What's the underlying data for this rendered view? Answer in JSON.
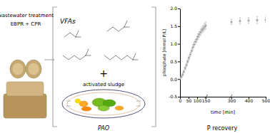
{
  "chart_data": {
    "type": "scatter",
    "marker": "o",
    "color": "#aaaaaa",
    "x": [
      0,
      8,
      15,
      22,
      30,
      38,
      45,
      52,
      60,
      68,
      75,
      82,
      90,
      98,
      105,
      112,
      120,
      128,
      135,
      143,
      150,
      300,
      350,
      400,
      450,
      500
    ],
    "values": [
      0.02,
      0.07,
      0.13,
      0.21,
      0.31,
      0.4,
      0.5,
      0.6,
      0.7,
      0.8,
      0.9,
      0.98,
      1.06,
      1.13,
      1.2,
      1.27,
      1.33,
      1.39,
      1.43,
      1.48,
      1.52,
      1.62,
      1.65,
      1.66,
      1.67,
      1.68
    ],
    "errors": [
      0.03,
      0.03,
      0.04,
      0.04,
      0.05,
      0.05,
      0.05,
      0.06,
      0.06,
      0.06,
      0.07,
      0.07,
      0.07,
      0.08,
      0.08,
      0.08,
      0.09,
      0.09,
      0.09,
      0.1,
      0.1,
      0.07,
      0.09,
      0.08,
      0.1,
      0.08
    ],
    "xlabel": "time [min]",
    "ylabel": "phosphate [mmol P/L]",
    "xlim": [
      0,
      500
    ],
    "xticks": [
      0,
      50,
      100,
      150,
      300,
      400,
      500
    ],
    "ylim": [
      -0.5,
      2.0
    ],
    "yticks": [
      -0.5,
      {
        "value": 0.0,
        "label": "0.0"
      },
      0.5,
      {
        "value": 1.0,
        "label": "1.0"
      },
      1.5,
      {
        "value": 2.0,
        "label": "2.0"
      }
    ],
    "annotations": [
      "wastewater treatment",
      "EBPR + CPR",
      "VFAs",
      "+",
      "activated sludge",
      "PAO",
      "P recovery"
    ]
  }
}
